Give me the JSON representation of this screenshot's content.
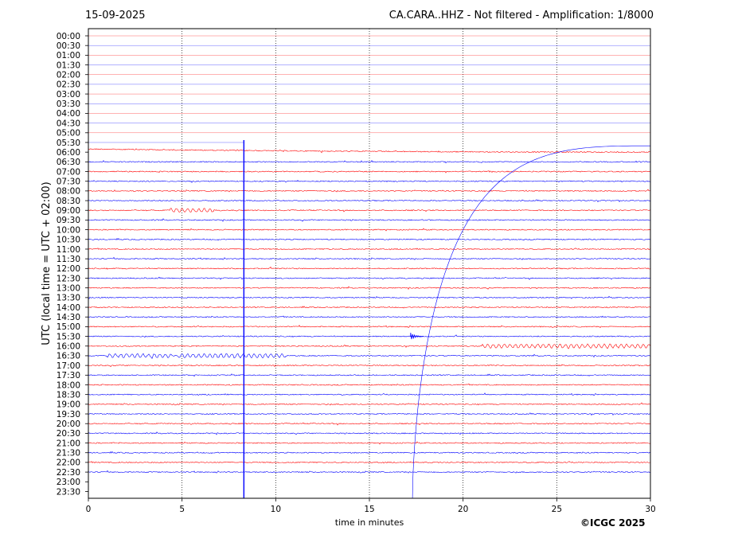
{
  "header": {
    "date": "15-09-2025",
    "title": "CA.CARA..HHZ - Not filtered - Amplification: 1/8000"
  },
  "footer": {
    "copyright": "©ICGC 2025"
  },
  "chart_data": {
    "type": "line",
    "title": "CA.CARA..HHZ - Not filtered - Amplification: 1/8000",
    "xlabel": "time in minutes",
    "ylabel": "UTC (local time = UTC + 02:00)",
    "xlim": [
      0,
      30
    ],
    "xticks": [
      0,
      5,
      10,
      15,
      20,
      25,
      30
    ],
    "grid": "vertical dotted at each x tick",
    "rows": [
      "00:00",
      "00:30",
      "01:00",
      "01:30",
      "02:00",
      "02:30",
      "03:00",
      "03:30",
      "04:00",
      "04:30",
      "05:00",
      "05:30",
      "06:00",
      "06:30",
      "07:00",
      "07:30",
      "08:00",
      "08:30",
      "09:00",
      "09:30",
      "10:00",
      "10:30",
      "11:00",
      "11:30",
      "12:00",
      "12:30",
      "13:00",
      "13:30",
      "14:00",
      "14:30",
      "15:00",
      "15:30",
      "16:00",
      "16:30",
      "17:00",
      "17:30",
      "18:00",
      "18:30",
      "19:00",
      "19:30",
      "20:00",
      "20:30",
      "21:00",
      "21:30",
      "22:00",
      "22:30",
      "23:00",
      "23:30"
    ],
    "row_colors": [
      "#ff0000",
      "#0000ff"
    ],
    "colors": {
      "red": "#ff0000",
      "blue": "#0000ff"
    },
    "quiet_rows_through": "05:30",
    "data_ends_at_row": "22:30",
    "events": [
      {
        "kind": "spike",
        "x_min": 8.3,
        "from_row": "05:30",
        "to_row": "23:30",
        "color": "#0000ff"
      },
      {
        "kind": "drift",
        "row": "06:00",
        "from": [
          0,
          -0.4
        ],
        "to": [
          30,
          0.0
        ],
        "color": "#ff0000"
      },
      {
        "kind": "curve",
        "description_row_start": "23:30",
        "start_x": 17.3,
        "end_row": "06:00",
        "end_x": 30,
        "color": "#0000ff"
      },
      {
        "kind": "burst",
        "row": "15:30",
        "x_min": 17.2,
        "color": "#0000ff"
      },
      {
        "kind": "oscillation",
        "row": "09:00",
        "x_range": [
          4.3,
          6.7
        ],
        "color": "#ff0000"
      },
      {
        "kind": "oscillation",
        "row": "16:00",
        "x_range": [
          21,
          30
        ],
        "color": "#ff0000"
      },
      {
        "kind": "oscillation",
        "row": "16:30",
        "x_range": [
          1,
          4.5
        ],
        "color": "#0000ff"
      },
      {
        "kind": "oscillation",
        "row": "16:30",
        "x_range": [
          4.8,
          10.5
        ],
        "color": "#0000ff"
      }
    ]
  }
}
